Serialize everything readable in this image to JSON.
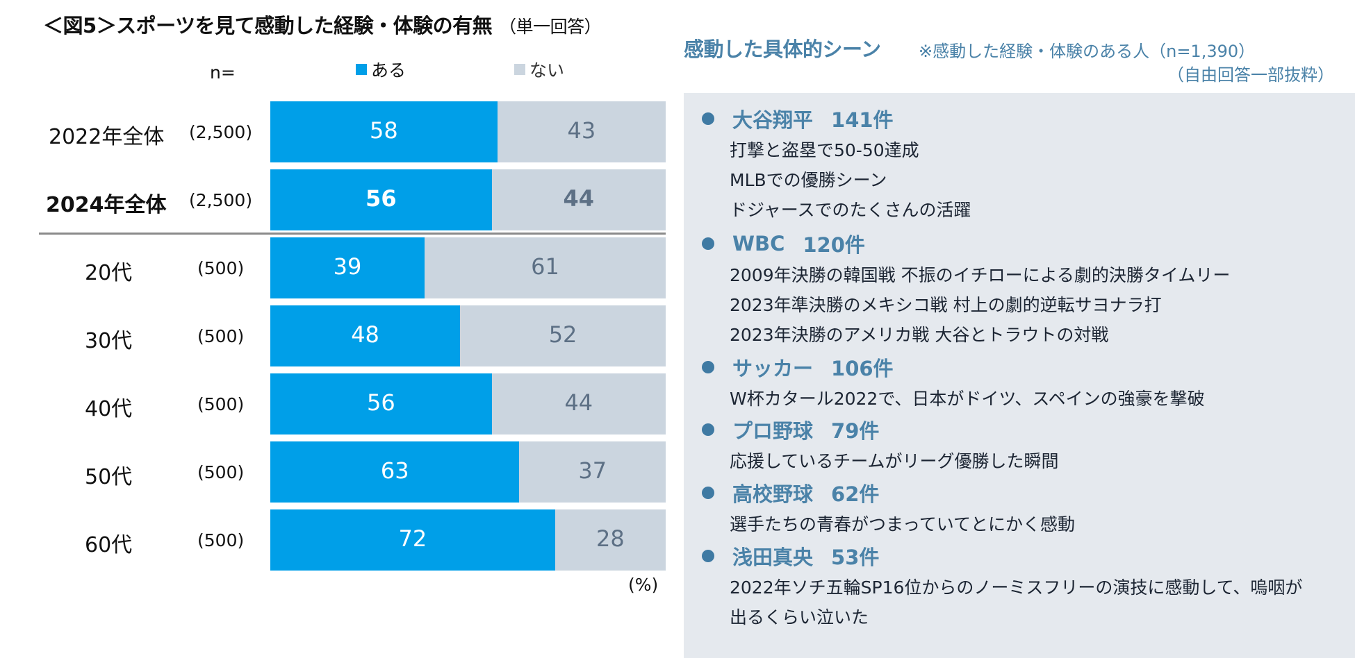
{
  "figure": {
    "title": "＜図5＞スポーツを見て感動した経験・体験の有無",
    "title_note": "（単一回答）",
    "n_label": "n=",
    "unit": "(%)"
  },
  "colors": {
    "yes": "#009fe8",
    "no": "#cbd5df",
    "yes_text": "#ffffff",
    "no_text": "#5d7085",
    "accent": "#4a82a8",
    "panel_bg": "#e5e9ee"
  },
  "chart_data": {
    "type": "bar",
    "orientation": "horizontal",
    "stacked": true,
    "title": "＜図5＞スポーツを見て感動した経験・体験の有無（単一回答）",
    "xlabel": "",
    "ylabel": "",
    "unit": "%",
    "legend": [
      "ある",
      "ない"
    ],
    "legend_position": "top",
    "categories": [
      "2022年全体",
      "2024年全体",
      "20代",
      "30代",
      "40代",
      "50代",
      "60代"
    ],
    "n": [
      "(2,500)",
      "(2,500)",
      "(500)",
      "(500)",
      "(500)",
      "(500)",
      "(500)"
    ],
    "bold_rows": [
      1
    ],
    "series": [
      {
        "name": "ある",
        "values": [
          58,
          56,
          39,
          48,
          56,
          63,
          72
        ]
      },
      {
        "name": "ない",
        "values": [
          43,
          44,
          61,
          52,
          44,
          37,
          28
        ]
      }
    ]
  },
  "scenes": {
    "title": "感動した具体的シーン",
    "note": "※感動した経験・体験のある人（n=1,390）",
    "note2": "（自由回答一部抜粋）",
    "items": [
      {
        "name": "大谷翔平",
        "count": "141件",
        "lines": [
          "打撃と盗塁で50-50達成",
          "MLBでの優勝シーン",
          "ドジャースでのたくさんの活躍"
        ]
      },
      {
        "name": "WBC",
        "count": "120件",
        "lines": [
          "2009年決勝の韓国戦 不振のイチローによる劇的決勝タイムリー",
          "2023年準決勝のメキシコ戦 村上の劇的逆転サヨナラ打",
          "2023年決勝のアメリカ戦 大谷とトラウトの対戦"
        ]
      },
      {
        "name": "サッカー",
        "count": "106件",
        "lines": [
          "W杯カタール2022で、日本がドイツ、スペインの強豪を撃破"
        ]
      },
      {
        "name": "プロ野球",
        "count": "79件",
        "lines": [
          "応援しているチームがリーグ優勝した瞬間"
        ]
      },
      {
        "name": "高校野球",
        "count": "62件",
        "lines": [
          "選手たちの青春がつまっていてとにかく感動"
        ]
      },
      {
        "name": "浅田真央",
        "count": "53件",
        "lines": [
          "2022年ソチ五輪SP16位からのノーミスフリーの演技に感動して、嗚咽が",
          "出るくらい泣いた"
        ]
      }
    ]
  }
}
